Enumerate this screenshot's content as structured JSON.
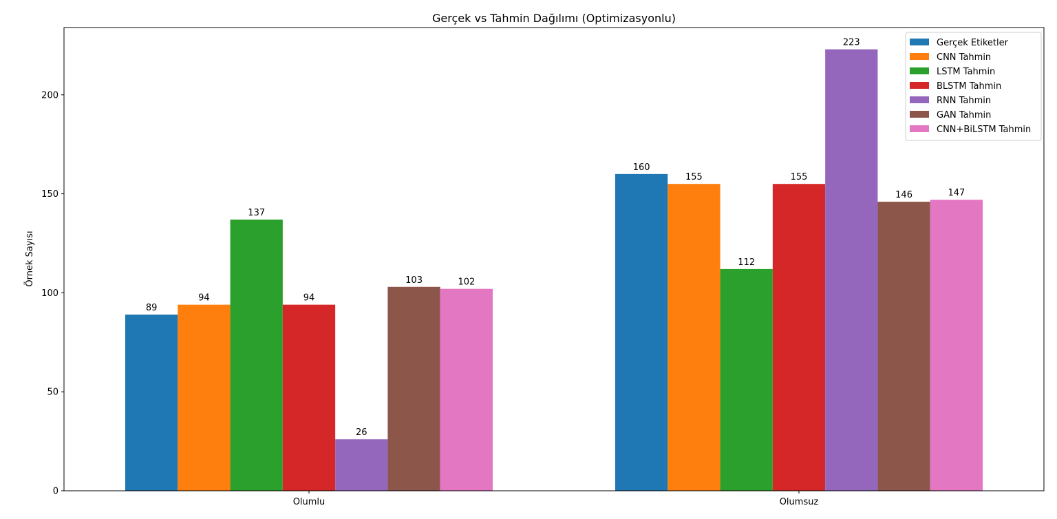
{
  "chart_data": {
    "type": "bar",
    "title": "Gerçek vs Tahmin Dağılımı (Optimizasyonlu)",
    "xlabel": "",
    "ylabel": "Örnek Sayısı",
    "ylim": [
      0,
      234
    ],
    "yticks": [
      0,
      50,
      100,
      150,
      200
    ],
    "categories": [
      "Olumlu",
      "Olumsuz"
    ],
    "legend_position": "top-right",
    "grid": false,
    "series": [
      {
        "name": "Gerçek Etiketler",
        "color": "#1f77b4",
        "values": [
          89,
          160
        ]
      },
      {
        "name": "CNN Tahmin",
        "color": "#ff7f0e",
        "values": [
          94,
          155
        ]
      },
      {
        "name": "LSTM Tahmin",
        "color": "#2ca02c",
        "values": [
          137,
          112
        ]
      },
      {
        "name": "BLSTM Tahmin",
        "color": "#d62728",
        "values": [
          94,
          155
        ]
      },
      {
        "name": "RNN Tahmin",
        "color": "#9467bd",
        "values": [
          26,
          223
        ]
      },
      {
        "name": "GAN Tahmin",
        "color": "#8c564b",
        "values": [
          103,
          146
        ]
      },
      {
        "name": "CNN+BiLSTM Tahmin",
        "color": "#e377c2",
        "values": [
          102,
          147
        ]
      }
    ]
  }
}
